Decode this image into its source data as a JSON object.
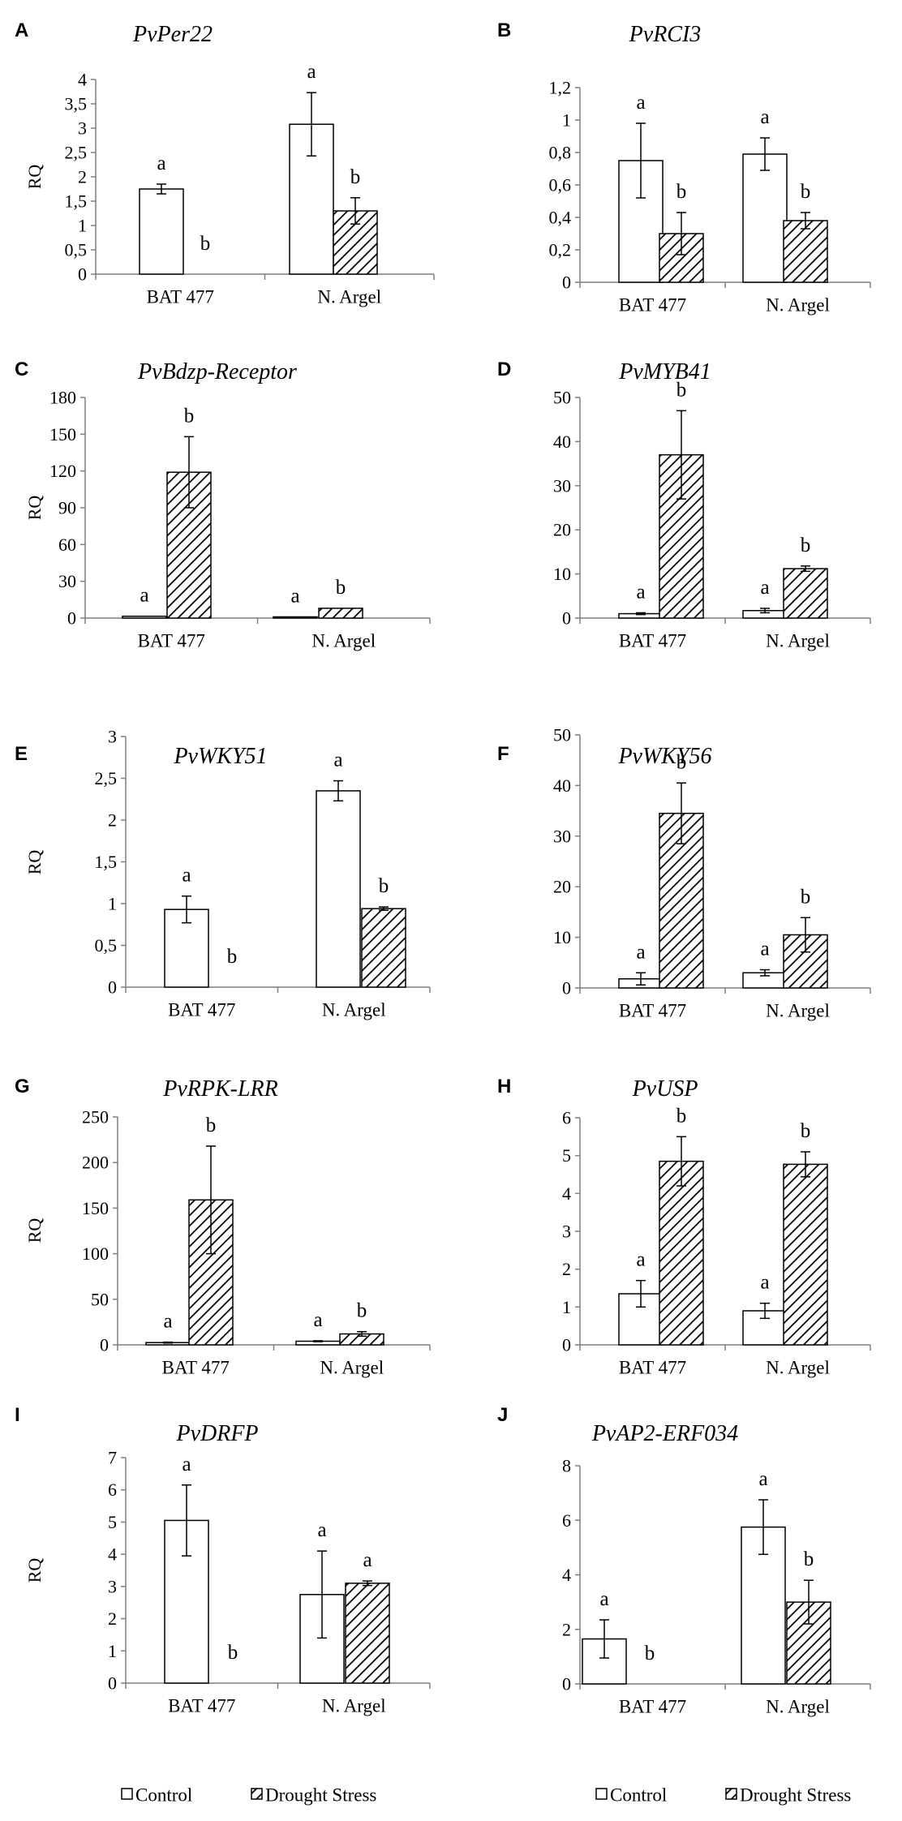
{
  "chart_data": [
    {
      "panel": "A",
      "title": "PvPer22",
      "type": "bar",
      "ylabel": "RQ",
      "categories": [
        "BAT 477",
        "N. Argel"
      ],
      "ylim": [
        0,
        4
      ],
      "ticks": [
        "0",
        "0,5",
        "1",
        "1,5",
        "2",
        "2,5",
        "3",
        "3,5",
        "4"
      ],
      "series": [
        {
          "name": "Control",
          "values": [
            1.75,
            3.08
          ],
          "errors": [
            0.1,
            0.65
          ],
          "labels": [
            "a",
            "a"
          ]
        },
        {
          "name": "Drought Stress",
          "values": [
            0,
            1.3
          ],
          "errors": [
            0,
            0.27
          ],
          "labels": [
            "b",
            "b"
          ]
        }
      ]
    },
    {
      "panel": "B",
      "title": "PvRCI3",
      "type": "bar",
      "ylabel": "",
      "categories": [
        "BAT 477",
        "N. Argel"
      ],
      "ylim": [
        0,
        1.2
      ],
      "ticks": [
        "0",
        "0,2",
        "0,4",
        "0,6",
        "0,8",
        "1",
        "1,2"
      ],
      "series": [
        {
          "name": "Control",
          "values": [
            0.75,
            0.79
          ],
          "errors": [
            0.23,
            0.1
          ],
          "labels": [
            "a",
            "a"
          ]
        },
        {
          "name": "Drought Stress",
          "values": [
            0.3,
            0.38
          ],
          "errors": [
            0.13,
            0.05
          ],
          "labels": [
            "b",
            "b"
          ]
        }
      ]
    },
    {
      "panel": "C",
      "title": "PvBdzp-Receptor",
      "type": "bar",
      "ylabel": "RQ",
      "categories": [
        "BAT 477",
        "N. Argel"
      ],
      "ylim": [
        0,
        180
      ],
      "ticks": [
        "0",
        "30",
        "60",
        "90",
        "120",
        "150",
        "180"
      ],
      "series": [
        {
          "name": "Control",
          "values": [
            1.5,
            1
          ],
          "errors": [
            0,
            0
          ],
          "labels": [
            "a",
            "a"
          ]
        },
        {
          "name": "Drought Stress",
          "values": [
            119,
            8
          ],
          "errors": [
            29,
            0
          ],
          "labels": [
            "b",
            "b"
          ]
        }
      ]
    },
    {
      "panel": "D",
      "title": "PvMYB41",
      "type": "bar",
      "ylabel": "",
      "categories": [
        "BAT 477",
        "N. Argel"
      ],
      "ylim": [
        0,
        50
      ],
      "ticks": [
        "0",
        "10",
        "20",
        "30",
        "40",
        "50"
      ],
      "series": [
        {
          "name": "Control",
          "values": [
            1,
            1.7
          ],
          "errors": [
            0.2,
            0.5
          ],
          "labels": [
            "a",
            "a"
          ]
        },
        {
          "name": "Drought Stress",
          "values": [
            37,
            11.2
          ],
          "errors": [
            10,
            0.6
          ],
          "labels": [
            "b",
            "b"
          ]
        }
      ]
    },
    {
      "panel": "E",
      "title": "PvWKY51",
      "type": "bar",
      "ylabel": "RQ",
      "categories": [
        "BAT 477",
        "N. Argel"
      ],
      "ylim": [
        0,
        3
      ],
      "ticks": [
        "0",
        "0,5",
        "1",
        "1,5",
        "2",
        "2,5",
        "3"
      ],
      "series": [
        {
          "name": "Control",
          "values": [
            0.93,
            2.35
          ],
          "errors": [
            0.16,
            0.12
          ],
          "labels": [
            "a",
            "a"
          ]
        },
        {
          "name": "Drought Stress",
          "values": [
            0,
            0.94
          ],
          "errors": [
            0,
            0.02
          ],
          "labels": [
            "b",
            "b"
          ]
        }
      ]
    },
    {
      "panel": "F",
      "title": "PvWKY56",
      "type": "bar",
      "ylabel": "",
      "categories": [
        "BAT 477",
        "N. Argel"
      ],
      "ylim": [
        0,
        50
      ],
      "ticks": [
        "0",
        "10",
        "20",
        "30",
        "40",
        "50"
      ],
      "series": [
        {
          "name": "Control",
          "values": [
            1.8,
            3
          ],
          "errors": [
            1.2,
            0.6
          ],
          "labels": [
            "a",
            "a"
          ]
        },
        {
          "name": "Drought Stress",
          "values": [
            34.5,
            10.5
          ],
          "errors": [
            6,
            3.4
          ],
          "labels": [
            "b",
            "b"
          ]
        }
      ]
    },
    {
      "panel": "G",
      "title": "PvRPK-LRR",
      "type": "bar",
      "ylabel": "RQ",
      "categories": [
        "BAT 477",
        "N. Argel"
      ],
      "ylim": [
        0,
        250
      ],
      "ticks": [
        "0",
        "50",
        "100",
        "150",
        "200",
        "250"
      ],
      "series": [
        {
          "name": "Control",
          "values": [
            2.5,
            4
          ],
          "errors": [
            0.5,
            0.5
          ],
          "labels": [
            "a",
            "a"
          ]
        },
        {
          "name": "Drought Stress",
          "values": [
            159,
            12
          ],
          "errors": [
            59,
            2.5
          ],
          "labels": [
            "b",
            "b"
          ]
        }
      ]
    },
    {
      "panel": "H",
      "title": "PvUSP",
      "type": "bar",
      "ylabel": "",
      "categories": [
        "BAT 477",
        "N. Argel"
      ],
      "ylim": [
        0,
        6
      ],
      "ticks": [
        "0",
        "1",
        "2",
        "3",
        "4",
        "5",
        "6"
      ],
      "series": [
        {
          "name": "Control",
          "values": [
            1.35,
            0.9
          ],
          "errors": [
            0.35,
            0.2
          ],
          "labels": [
            "a",
            "a"
          ]
        },
        {
          "name": "Drought Stress",
          "values": [
            4.85,
            4.77
          ],
          "errors": [
            0.65,
            0.33
          ],
          "labels": [
            "b",
            "b"
          ]
        }
      ]
    },
    {
      "panel": "I",
      "title": "PvDRFP",
      "type": "bar",
      "ylabel": "RQ",
      "categories": [
        "BAT 477",
        "N. Argel"
      ],
      "ylim": [
        0,
        7
      ],
      "ticks": [
        "0",
        "1",
        "2",
        "3",
        "4",
        "5",
        "6",
        "7"
      ],
      "series": [
        {
          "name": "Control",
          "values": [
            5.05,
            2.75
          ],
          "errors": [
            1.1,
            1.35
          ],
          "labels": [
            "a",
            "a"
          ]
        },
        {
          "name": "Drought Stress",
          "values": [
            0,
            3.1
          ],
          "errors": [
            0,
            0.07
          ],
          "labels": [
            "b",
            "a"
          ]
        }
      ]
    },
    {
      "panel": "J",
      "title": "PvAP2-ERF034",
      "type": "bar",
      "ylabel": "",
      "categories": [
        "BAT 477",
        "N. Argel"
      ],
      "ylim": [
        0,
        8
      ],
      "ticks": [
        "0",
        "2",
        "4",
        "6",
        "8"
      ],
      "series": [
        {
          "name": "Control",
          "values": [
            1.65,
            5.75
          ],
          "errors": [
            0.7,
            1.0
          ],
          "labels": [
            "a",
            "a"
          ]
        },
        {
          "name": "Drought Stress",
          "values": [
            0,
            3.0
          ],
          "errors": [
            0,
            0.8
          ],
          "labels": [
            "b",
            "b"
          ]
        }
      ]
    }
  ],
  "legend": {
    "entries": [
      "Control",
      "Drought Stress"
    ]
  }
}
